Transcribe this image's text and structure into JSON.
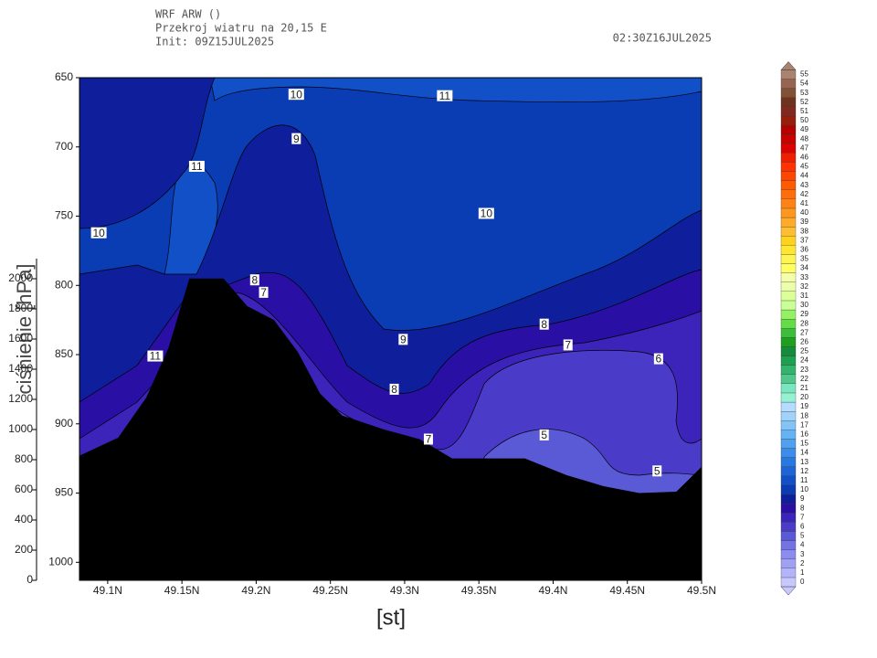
{
  "chart_data": {
    "type": "contour",
    "title_lines": [
      "WRF ARW ()",
      "Przekroj wiatru na 20,15 E",
      "Init: 09Z15JUL2025"
    ],
    "valid_time": "02:30Z16JUL2025",
    "ylabel": "ciśnienie [hPa]",
    "xlabel": "[st]",
    "xlim": [
      49.081,
      49.5
    ],
    "xticks": [
      {
        "value": 49.1,
        "label": "49.1N"
      },
      {
        "value": 49.15,
        "label": "49.15N"
      },
      {
        "value": 49.2,
        "label": "49.2N"
      },
      {
        "value": 49.25,
        "label": "49.25N"
      },
      {
        "value": 49.3,
        "label": "49.3N"
      },
      {
        "value": 49.35,
        "label": "49.35N"
      },
      {
        "value": 49.4,
        "label": "49.4N"
      },
      {
        "value": 49.45,
        "label": "49.45N"
      },
      {
        "value": 49.5,
        "label": "49.5N"
      }
    ],
    "ylim": [
      650,
      1013
    ],
    "yticks": [
      650,
      700,
      750,
      800,
      850,
      900,
      950,
      1000
    ],
    "y2lim": [
      0,
      2000
    ],
    "y2ticks": [
      0,
      200,
      400,
      600,
      800,
      1000,
      1200,
      1400,
      1600,
      1800,
      2000
    ],
    "terrain": {
      "color": "#000000",
      "x": [
        49.081,
        49.107,
        49.126,
        49.141,
        49.155,
        49.178,
        49.194,
        49.212,
        49.228,
        49.243,
        49.258,
        49.286,
        49.31,
        49.332,
        49.381,
        49.409,
        49.434,
        49.458,
        49.483,
        49.5
      ],
      "values": [
        923,
        910,
        881,
        845,
        795,
        795,
        815,
        825,
        848,
        878,
        894,
        904,
        911,
        925,
        925,
        937,
        945,
        950,
        949,
        931
      ]
    },
    "contour_labels": [
      {
        "level": 10,
        "x": 49.227,
        "y": 662
      },
      {
        "level": 11,
        "x": 49.327,
        "y": 663
      },
      {
        "level": 9,
        "x": 49.227,
        "y": 694
      },
      {
        "level": 11,
        "x": 49.16,
        "y": 714
      },
      {
        "level": 10,
        "x": 49.094,
        "y": 762
      },
      {
        "level": 10,
        "x": 49.355,
        "y": 748
      },
      {
        "level": 8,
        "x": 49.199,
        "y": 796
      },
      {
        "level": 7,
        "x": 49.205,
        "y": 805
      },
      {
        "level": 8,
        "x": 49.394,
        "y": 828
      },
      {
        "level": 9,
        "x": 49.299,
        "y": 839
      },
      {
        "level": 7,
        "x": 49.41,
        "y": 843
      },
      {
        "level": 11,
        "x": 49.132,
        "y": 851
      },
      {
        "level": 6,
        "x": 49.471,
        "y": 853
      },
      {
        "level": 8,
        "x": 49.293,
        "y": 875
      },
      {
        "level": 7,
        "x": 49.316,
        "y": 911
      },
      {
        "level": 5,
        "x": 49.394,
        "y": 908
      },
      {
        "level": 5,
        "x": 49.47,
        "y": 934
      }
    ],
    "colorbar": {
      "levels": [
        0,
        1,
        2,
        3,
        4,
        5,
        6,
        7,
        8,
        9,
        10,
        11,
        12,
        13,
        14,
        15,
        16,
        17,
        18,
        19,
        20,
        21,
        22,
        23,
        24,
        25,
        26,
        27,
        28,
        29,
        30,
        31,
        32,
        33,
        34,
        35,
        36,
        37,
        38,
        39,
        40,
        41,
        42,
        43,
        44,
        45,
        46,
        47,
        48,
        49,
        50,
        51,
        52,
        53,
        54,
        55
      ],
      "colors": [
        "#c8c8ff",
        "#b4b4fa",
        "#a0a0f5",
        "#8c8cf0",
        "#7373e3",
        "#5a5ad7",
        "#4a3cc8",
        "#3c23b9",
        "#2a0fa5",
        "#0f1e9b",
        "#0a3cb4",
        "#1250c8",
        "#1e64d7",
        "#2878e1",
        "#3c8ceb",
        "#50a0f0",
        "#64b4f5",
        "#82c3f8",
        "#a0d2fa",
        "#b4dcff",
        "#96f0d2",
        "#78e6be",
        "#50c88c",
        "#32b46e",
        "#1ea050",
        "#148c3c",
        "#1ea01e",
        "#3cbe3c",
        "#64dc46",
        "#96f064",
        "#c8ff96",
        "#dcff96",
        "#ebffaa",
        "#f5ffaa",
        "#ffff64",
        "#fff550",
        "#ffe632",
        "#ffd21e",
        "#ffbe32",
        "#ffaa28",
        "#ff961e",
        "#ff8214",
        "#ff6e0a",
        "#ff5a00",
        "#ff4600",
        "#ff3200",
        "#f01e00",
        "#dc0000",
        "#c80000",
        "#b40000",
        "#961e0a",
        "#82281e",
        "#6e321e",
        "#825032",
        "#966450",
        "#aa8270"
      ]
    }
  }
}
